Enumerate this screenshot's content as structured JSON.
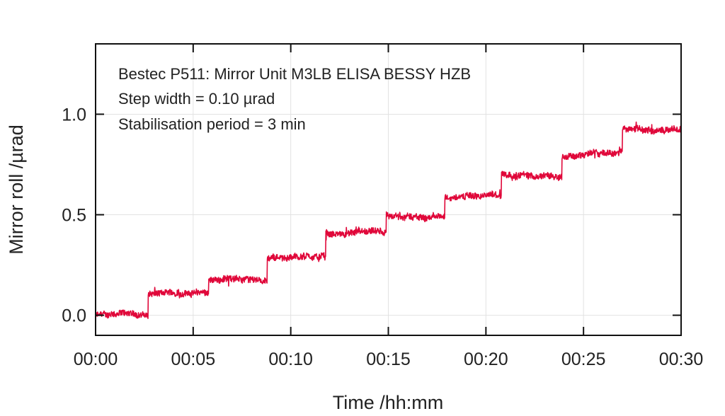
{
  "chart_data": {
    "type": "line",
    "title": "",
    "annotations": [
      "Bestec P511: Mirror Unit M3LB ELISA BESSY HZB",
      "Step width = 0.10 µrad",
      "Stabilisation period = 3 min"
    ],
    "xlabel": "Time /hh:mm",
    "ylabel": "Mirror roll /µrad",
    "xlim_min": [
      0,
      30
    ],
    "ylim": [
      -0.1,
      1.35
    ],
    "x_ticks_min": [
      0,
      5,
      10,
      15,
      20,
      25,
      30
    ],
    "x_tick_labels": [
      "00:00",
      "00:05",
      "00:10",
      "00:15",
      "00:20",
      "00:25",
      "00:30"
    ],
    "y_ticks": [
      0.0,
      0.5,
      1.0
    ],
    "y_tick_labels": [
      "0.0",
      "0.5",
      "1.0"
    ],
    "grid": true,
    "series": [
      {
        "name": "Mirror roll",
        "color": "#e0083a",
        "noise_amplitude_urad": 0.015,
        "steps": [
          {
            "start_min": 0.0,
            "level": 0.0
          },
          {
            "start_min": 2.7,
            "level": 0.11
          },
          {
            "start_min": 5.8,
            "level": 0.18
          },
          {
            "start_min": 8.8,
            "level": 0.29
          },
          {
            "start_min": 11.8,
            "level": 0.4
          },
          {
            "start_min": 14.9,
            "level": 0.49
          },
          {
            "start_min": 17.9,
            "level": 0.59
          },
          {
            "start_min": 20.8,
            "level": 0.7
          },
          {
            "start_min": 23.9,
            "level": 0.8
          },
          {
            "start_min": 27.0,
            "level": 0.92
          }
        ]
      }
    ]
  }
}
